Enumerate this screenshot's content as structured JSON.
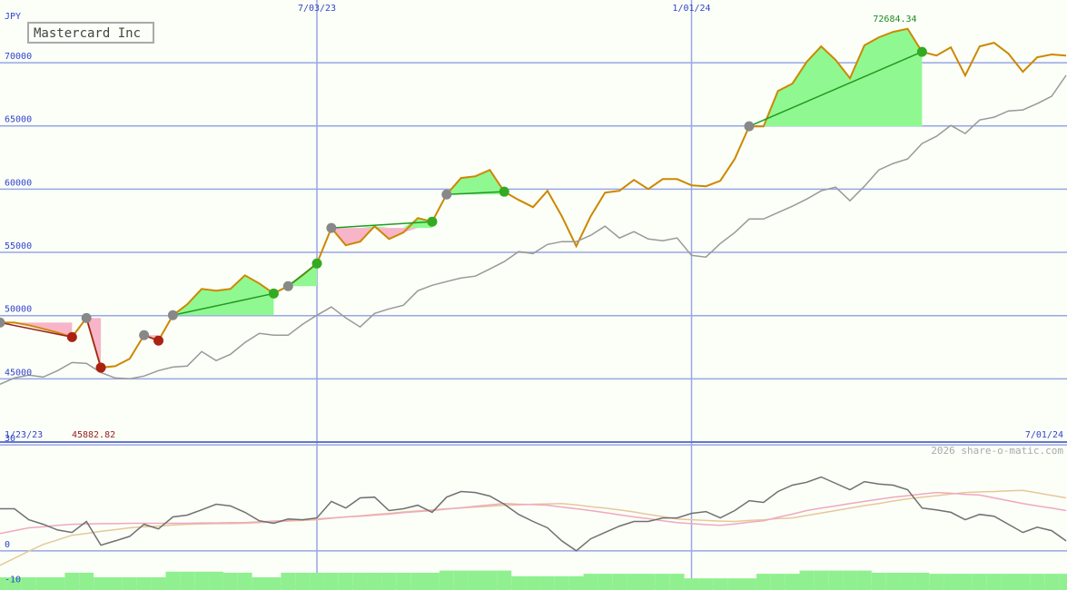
{
  "chart_data": [
    {
      "type": "line",
      "title": "Mastercard Inc",
      "unit": "JPY",
      "categories": [
        "1/23/23",
        null,
        null,
        null,
        null,
        null,
        null,
        null,
        null,
        null,
        null,
        null,
        null,
        null,
        null,
        null,
        null,
        null,
        null,
        null,
        null,
        null,
        "7/03/23",
        null,
        null,
        null,
        null,
        null,
        null,
        null,
        null,
        null,
        null,
        null,
        null,
        null,
        null,
        null,
        null,
        null,
        null,
        null,
        null,
        null,
        null,
        null,
        null,
        null,
        "1/01/24",
        null,
        null,
        null,
        null,
        null,
        null,
        null,
        null,
        null,
        null,
        null,
        null,
        null,
        null,
        null,
        null,
        null,
        null,
        null,
        null,
        null,
        null,
        null,
        null,
        null,
        "7/01/24"
      ],
      "series": [
        {
          "color": "#cc8800",
          "values": [
            49450,
            49450,
            49240,
            48950,
            48660,
            48300,
            49810,
            45883,
            46000,
            46580,
            48450,
            48020,
            50030,
            50890,
            52110,
            51970,
            52110,
            53190,
            52540,
            51750,
            52330,
            53190,
            54120,
            56930,
            55560,
            55850,
            57070,
            56060,
            56570,
            57720,
            57430,
            59580,
            60880,
            61020,
            61520,
            59800,
            59150,
            58580,
            59870,
            57860,
            55490,
            57860,
            59730,
            59870,
            60730,
            60010,
            60800,
            60800,
            60300,
            60230,
            60660,
            62390,
            64970,
            64970,
            67770,
            68350,
            70070,
            71290,
            70220,
            68780,
            71370,
            72010,
            72440,
            72684,
            70860,
            70570,
            71220,
            68990,
            71290,
            71580,
            70720,
            69280,
            70430,
            70650,
            70570
          ]
        },
        {
          "color": "#999999",
          "values": [
            44570,
            45070,
            45290,
            45140,
            45650,
            46290,
            46220,
            45500,
            45070,
            45000,
            45220,
            45650,
            45930,
            46010,
            47160,
            46440,
            46940,
            47870,
            48590,
            48450,
            48450,
            49310,
            50030,
            50680,
            49810,
            49100,
            50170,
            50530,
            50820,
            51970,
            52400,
            52690,
            52970,
            53120,
            53690,
            54270,
            55060,
            54910,
            55630,
            55850,
            55850,
            56350,
            57070,
            56140,
            56640,
            56060,
            55920,
            56140,
            54770,
            54630,
            55700,
            56570,
            57640,
            57640,
            58150,
            58650,
            59220,
            59870,
            60160,
            59080,
            60230,
            61520,
            62030,
            62390,
            63610,
            64180,
            65040,
            64400,
            65470,
            65690,
            66190,
            66270,
            66770,
            67340,
            69000
          ]
        }
      ],
      "high": 72684.34,
      "low": 45882.82,
      "trades": [
        {
          "entry": 0,
          "exit": 5
        },
        {
          "entry": 6,
          "exit": 7
        },
        {
          "entry": 10,
          "exit": 11
        },
        {
          "entry": 12,
          "exit": 19
        },
        {
          "entry": 20,
          "exit": 22
        },
        {
          "entry": 23,
          "exit": 30
        },
        {
          "entry": 31,
          "exit": 35
        },
        {
          "entry": 52,
          "exit": 64
        }
      ],
      "ylim": [
        40000,
        74960
      ],
      "yticks": [
        45000,
        50000,
        55000,
        60000,
        65000,
        70000
      ],
      "grid": true
    },
    {
      "type": "line",
      "annotation": "2026 share-o-matic.com",
      "series": [
        {
          "type": "bar",
          "color": "#90f090",
          "values": [
            -7.5,
            -7.5,
            -7.5,
            -7.5,
            -7.5,
            -6.2,
            -6.2,
            -7.5,
            -7.5,
            -7.5,
            -7.5,
            -7.5,
            -5.9,
            -5.9,
            -5.9,
            -5.9,
            -6.2,
            -6.2,
            -7.5,
            -7.5,
            -6.2,
            -6.2,
            -6.2,
            -6.2,
            -6.2,
            -6.2,
            -6.2,
            -6.2,
            -6.2,
            -6.2,
            -6.2,
            -5.6,
            -5.6,
            -5.6,
            -5.6,
            -5.6,
            -7.2,
            -7.2,
            -7.2,
            -7.2,
            -7.2,
            -6.5,
            -6.5,
            -6.5,
            -6.5,
            -6.5,
            -6.5,
            -6.5,
            -7.8,
            -7.8,
            -7.8,
            -7.8,
            -7.8,
            -6.5,
            -6.5,
            -6.5,
            -5.6,
            -5.6,
            -5.6,
            -5.6,
            -5.6,
            -6.2,
            -6.2,
            -6.2,
            -6.2,
            -6.5,
            -6.5,
            -6.5,
            -6.5,
            -6.5,
            -6.5,
            -6.5,
            -6.5,
            -6.5,
            -6.5
          ]
        },
        {
          "color": "#e6c89a",
          "values": [
            -4.1,
            -2.1,
            -0.1,
            1.8,
            3.1,
            4.4,
            4.9,
            5.5,
            6.0,
            6.5,
            6.8,
            7.0,
            7.3,
            7.5,
            7.6,
            7.7,
            7.7,
            7.8,
            8.0,
            8.2,
            8.4,
            8.6,
            8.8,
            9.2,
            9.6,
            9.9,
            10.3,
            10.6,
            11.0,
            11.3,
            11.6,
            11.9,
            12.1,
            12.4,
            12.6,
            12.9,
            13.0,
            13.2,
            13.3,
            13.4,
            13.0,
            12.5,
            12.1,
            11.6,
            11.0,
            10.3,
            9.7,
            9.0,
            8.8,
            8.6,
            8.4,
            8.3,
            8.6,
            8.8,
            9.1,
            9.3,
            10.0,
            10.7,
            11.4,
            12.1,
            12.8,
            13.4,
            14.1,
            14.7,
            15.2,
            15.6,
            16.1,
            16.5,
            16.7,
            16.8,
            17.0,
            17.1,
            16.4,
            15.7,
            15.0
          ]
        },
        {
          "color": "#f0a8c0",
          "values": [
            4.9,
            5.7,
            6.5,
            6.8,
            7.2,
            7.5,
            7.6,
            7.7,
            7.7,
            7.8,
            7.8,
            7.8,
            7.8,
            7.8,
            7.9,
            7.9,
            8.0,
            8.0,
            8.2,
            8.4,
            8.6,
            8.8,
            9.0,
            9.3,
            9.6,
            9.8,
            10.1,
            10.4,
            10.8,
            11.1,
            11.4,
            11.8,
            12.2,
            12.6,
            13.0,
            13.4,
            13.2,
            13.1,
            12.9,
            12.4,
            11.9,
            11.4,
            10.8,
            10.2,
            9.6,
            9.1,
            8.5,
            8.0,
            7.7,
            7.4,
            7.2,
            7.6,
            8.1,
            8.5,
            9.5,
            10.4,
            11.4,
            12.1,
            12.7,
            13.4,
            14.0,
            14.6,
            15.2,
            15.6,
            16.1,
            16.5,
            16.3,
            16.0,
            15.8,
            15.0,
            14.2,
            13.4,
            12.7,
            12.1,
            11.4
          ]
        },
        {
          "color": "#707070",
          "values": [
            11.9,
            11.9,
            8.8,
            7.5,
            5.9,
            5.2,
            8.3,
            1.6,
            2.8,
            4.1,
            7.5,
            6.2,
            9.6,
            10.1,
            11.6,
            13.2,
            12.7,
            10.9,
            8.5,
            7.8,
            9.0,
            8.8,
            9.3,
            14.0,
            12.1,
            15.0,
            15.2,
            11.4,
            11.9,
            12.9,
            10.9,
            15.2,
            16.8,
            16.5,
            15.5,
            13.2,
            10.3,
            8.3,
            6.5,
            2.8,
            0,
            3.4,
            5.2,
            7.0,
            8.3,
            8.3,
            9.3,
            9.3,
            10.6,
            11.1,
            9.3,
            11.4,
            14.2,
            13.7,
            16.8,
            18.6,
            19.4,
            20.9,
            19.1,
            17.3,
            19.6,
            18.9,
            18.6,
            17.3,
            12.1,
            11.6,
            10.9,
            8.8,
            10.3,
            9.8,
            7.5,
            5.2,
            6.7,
            5.7,
            2.8
          ]
        }
      ],
      "ylim": [
        -11.1,
        30.8
      ],
      "yticks": [
        -10,
        0,
        30
      ],
      "grid": true
    }
  ]
}
